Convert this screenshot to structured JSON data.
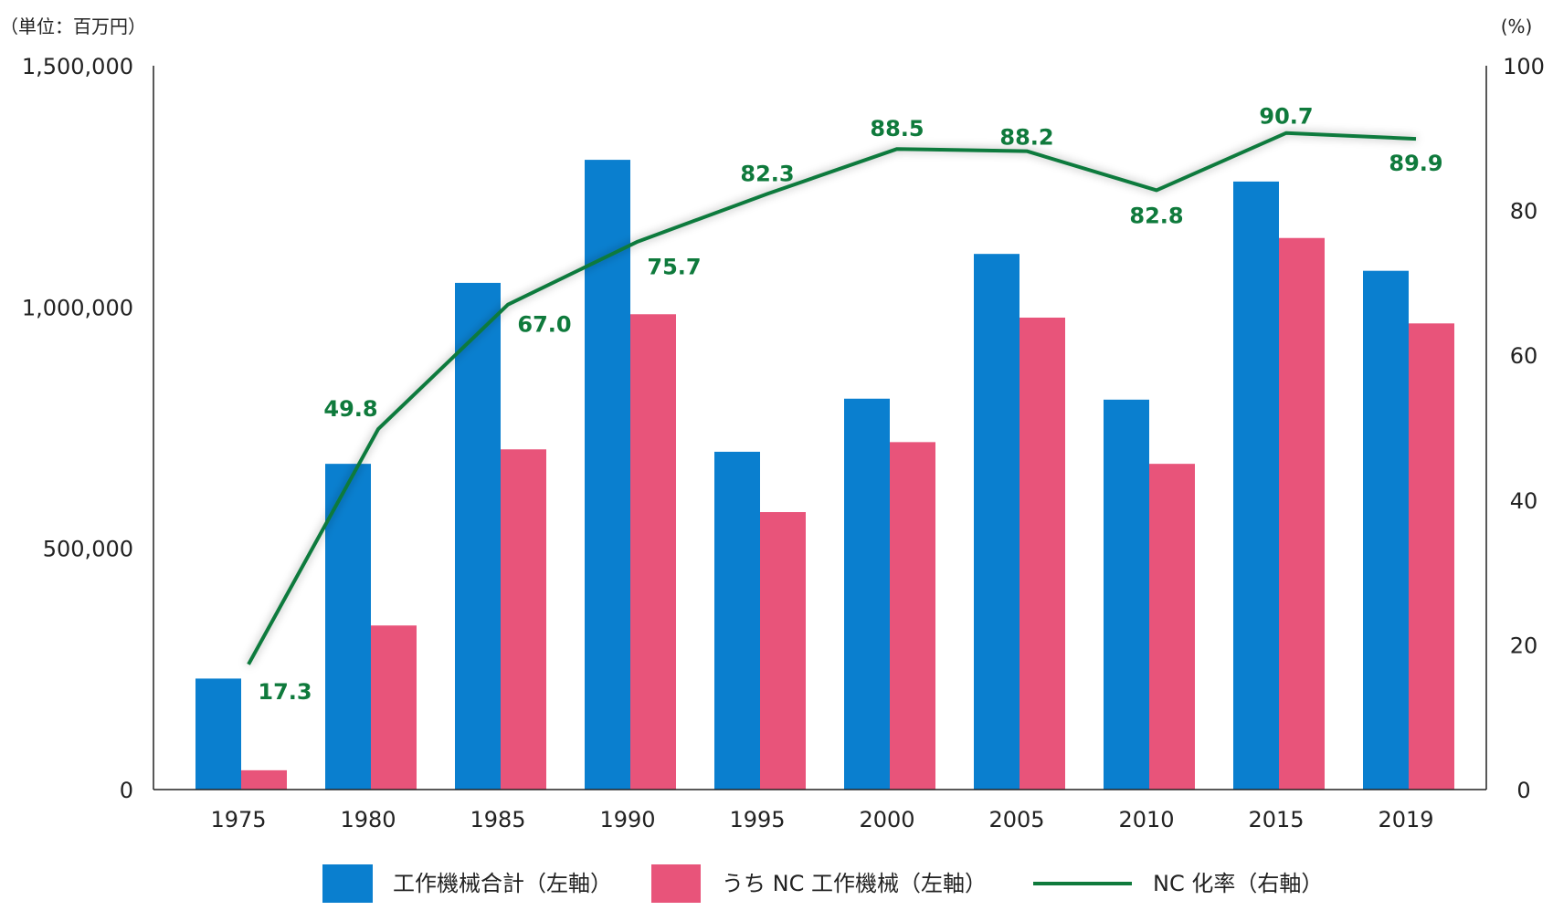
{
  "chart_data": {
    "type": "bar+line",
    "categories": [
      "1975",
      "1980",
      "1985",
      "1990",
      "1995",
      "2000",
      "2005",
      "2010",
      "2015",
      "2019"
    ],
    "series": [
      {
        "name": "工作機械合計（左軸）",
        "type": "bar",
        "axis": "left",
        "color": "#0a7fcf",
        "values": [
          230000,
          675000,
          1050000,
          1305000,
          700000,
          810000,
          1110000,
          808000,
          1260000,
          1075000
        ]
      },
      {
        "name": "うち NC 工作機械（左軸）",
        "type": "bar",
        "axis": "left",
        "color": "#e8547a",
        "values": [
          40000,
          340000,
          705000,
          985000,
          575000,
          720000,
          978000,
          675000,
          1143000,
          966000
        ]
      },
      {
        "name": "NC 化率（右軸）",
        "type": "line",
        "axis": "right",
        "color": "#0f7a3c",
        "values": [
          17.3,
          49.8,
          67.0,
          75.7,
          82.3,
          88.5,
          88.2,
          82.8,
          90.7,
          89.9
        ],
        "labels": [
          "17.3",
          "49.8",
          "67.0",
          "75.7",
          "82.3",
          "88.5",
          "88.2",
          "82.8",
          "90.7",
          "89.9"
        ]
      }
    ],
    "left_axis": {
      "unit_label": "（単位：百万円）",
      "range": [
        0,
        1500000
      ],
      "ticks": [
        0,
        500000,
        1000000,
        1500000
      ],
      "tick_labels": [
        "0",
        "500,000",
        "1,000,000",
        "1,500,000"
      ]
    },
    "right_axis": {
      "unit_label": "(%)",
      "range": [
        0,
        100
      ],
      "ticks": [
        0,
        20,
        40,
        60,
        80,
        100
      ],
      "tick_labels": [
        "0",
        "20",
        "40",
        "60",
        "80",
        "100"
      ]
    },
    "legend_position": "bottom",
    "grid": false
  }
}
